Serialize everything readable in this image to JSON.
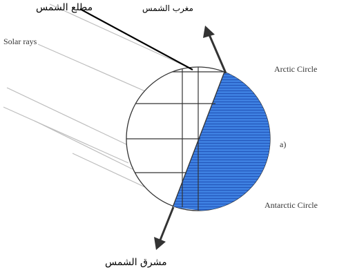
{
  "labels": {
    "sunrise_top": "مطلع الشمس",
    "sunset": "مغرب الشمس",
    "solar_rays": "Solar rays",
    "arctic_circle": "Arctic Circle",
    "panel_label": "a)",
    "antarctic_circle": "Antarctic Circle",
    "sunrise_bottom": "مشرق الشمس"
  },
  "colors": {
    "night_fill": "#3d7fe0",
    "night_hatch": "#1f4fb5",
    "outline": "#333333",
    "ray": "#bdbdbd"
  }
}
